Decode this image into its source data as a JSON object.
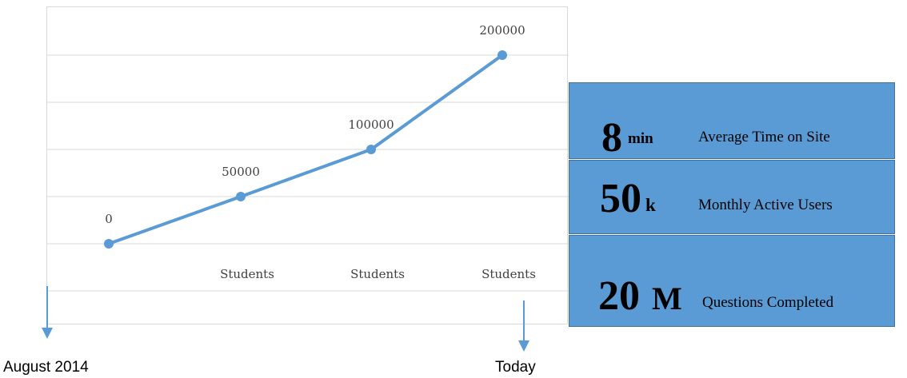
{
  "chart_data": {
    "type": "line",
    "categories": [
      "",
      "Students",
      "Students",
      "Students"
    ],
    "values": [
      0,
      50000,
      100000,
      200000
    ],
    "data_labels": [
      "0",
      "50000",
      "100000",
      "200000"
    ],
    "title": "",
    "xlabel": "",
    "ylabel": "",
    "ylim": [
      -20000,
      200000
    ],
    "grid": true,
    "legend": "none",
    "colors": {
      "series": "#5b9bd5",
      "grid": "#d9d9d9"
    }
  },
  "timeline": {
    "start_label": "August 2014",
    "end_label": "Today",
    "arrow_color": "#5b9bd5"
  },
  "stats": [
    {
      "value": "8",
      "unit": "min",
      "description": "Average Time on Site"
    },
    {
      "value": "50",
      "unit": "k",
      "description": "Monthly Active Users"
    },
    {
      "value": "20",
      "unit": "M",
      "description": "Questions Completed"
    }
  ],
  "stats_colors": {
    "fill": "#5b9bd5",
    "border": "#41719c"
  }
}
